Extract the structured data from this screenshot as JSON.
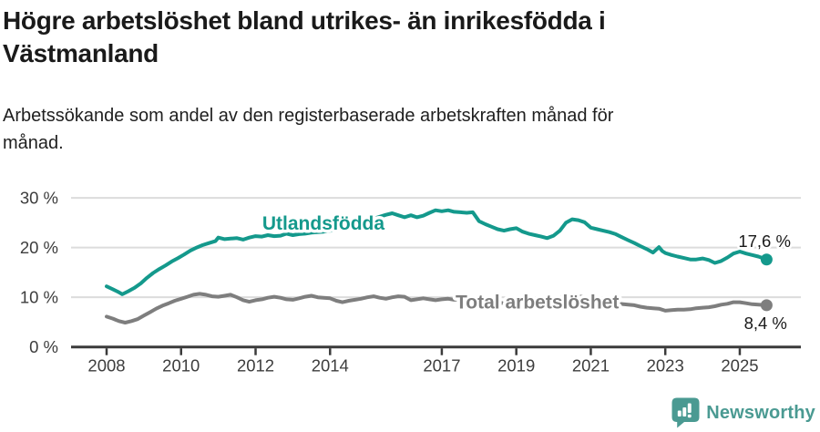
{
  "title": "Högre arbetslöshet bland utrikes- än inrikesfödda i\nVästmanland",
  "subtitle": "Arbetssökande som andel av den registerbaserade arbetskraften månad för\nmånad.",
  "branding": {
    "logo_text": "Newsworthy",
    "logo_icon": "bar-chart-speech-bubble-icon",
    "logo_color": "#4a9a92"
  },
  "colors": {
    "foreign_born": "#14998c",
    "total": "#7e7e7e",
    "gridline": "#dcdcdc",
    "axis": "#3b3b3b",
    "tick_text": "#3d3d3d",
    "annotation_text": "#1a1a1a",
    "background": "#ffffff"
  },
  "chart_data": {
    "type": "line",
    "title": "Högre arbetslöshet bland utrikes- än inrikesfödda i Västmanland",
    "subtitle": "Arbetssökande som andel av den registerbaserade arbetskraften månad för månad.",
    "xlabel": "",
    "ylabel": "",
    "xlim": [
      2008,
      2026.6
    ],
    "ylim": [
      0,
      32
    ],
    "grid": "horizontal",
    "legend_position": "inline-labels",
    "x_ticks": [
      {
        "v": 2008,
        "label": "2008"
      },
      {
        "v": 2010,
        "label": "2010"
      },
      {
        "v": 2012,
        "label": "2012"
      },
      {
        "v": 2014,
        "label": "2014"
      },
      {
        "v": 2017,
        "label": "2017"
      },
      {
        "v": 2019,
        "label": "2019"
      },
      {
        "v": 2021,
        "label": "2021"
      },
      {
        "v": 2023,
        "label": "2023"
      },
      {
        "v": 2025,
        "label": "2025"
      }
    ],
    "y_ticks": [
      {
        "v": 0,
        "label": "0 %"
      },
      {
        "v": 10,
        "label": "10 %"
      },
      {
        "v": 20,
        "label": "20 %"
      },
      {
        "v": 30,
        "label": "30 %"
      }
    ],
    "series": [
      {
        "name": "Utlandsfödda",
        "color": "#14998c",
        "end_value": 17.6,
        "end_dot": true,
        "label": {
          "text": "Utlandsfödda",
          "x": 2012.18,
          "y": 23.6,
          "anchor": "start"
        },
        "end_annotation": {
          "text": "17,6 %",
          "x": 2026.37,
          "y": 20.1,
          "anchor": "end"
        },
        "points": [
          [
            2008,
            12.2
          ],
          [
            2008.17,
            11.6
          ],
          [
            2008.33,
            11
          ],
          [
            2008.42,
            10.6
          ],
          [
            2008.58,
            11.2
          ],
          [
            2008.75,
            11.9
          ],
          [
            2008.92,
            12.8
          ],
          [
            2009.08,
            13.9
          ],
          [
            2009.25,
            14.9
          ],
          [
            2009.42,
            15.7
          ],
          [
            2009.58,
            16.4
          ],
          [
            2009.75,
            17.2
          ],
          [
            2009.92,
            17.9
          ],
          [
            2010.08,
            18.6
          ],
          [
            2010.25,
            19.4
          ],
          [
            2010.42,
            20
          ],
          [
            2010.58,
            20.5
          ],
          [
            2010.75,
            20.9
          ],
          [
            2010.92,
            21.3
          ],
          [
            2011,
            22
          ],
          [
            2011.17,
            21.7
          ],
          [
            2011.33,
            21.8
          ],
          [
            2011.5,
            21.9
          ],
          [
            2011.67,
            21.6
          ],
          [
            2011.83,
            22
          ],
          [
            2012,
            22.3
          ],
          [
            2012.17,
            22.2
          ],
          [
            2012.33,
            22.5
          ],
          [
            2012.5,
            22.3
          ],
          [
            2012.67,
            22.4
          ],
          [
            2012.83,
            22.8
          ],
          [
            2013,
            22.5
          ],
          [
            2013.17,
            22.7
          ],
          [
            2013.33,
            22.8
          ],
          [
            2013.5,
            23
          ],
          [
            2013.67,
            23.1
          ],
          [
            2013.83,
            23.2
          ],
          [
            2014,
            23.4
          ],
          [
            2014.25,
            23.7
          ],
          [
            2014.5,
            24.2
          ],
          [
            2014.75,
            24.8
          ],
          [
            2015,
            25.4
          ],
          [
            2015.25,
            26
          ],
          [
            2015.5,
            26.6
          ],
          [
            2015.67,
            26.9
          ],
          [
            2015.83,
            26.5
          ],
          [
            2016,
            26.1
          ],
          [
            2016.17,
            26.5
          ],
          [
            2016.33,
            26.1
          ],
          [
            2016.5,
            26.4
          ],
          [
            2016.67,
            27
          ],
          [
            2016.83,
            27.5
          ],
          [
            2017,
            27.3
          ],
          [
            2017.17,
            27.5
          ],
          [
            2017.33,
            27.2
          ],
          [
            2017.5,
            27.1
          ],
          [
            2017.67,
            27
          ],
          [
            2017.83,
            27.1
          ],
          [
            2018,
            25.3
          ],
          [
            2018.17,
            24.7
          ],
          [
            2018.33,
            24.2
          ],
          [
            2018.5,
            23.7
          ],
          [
            2018.67,
            23.4
          ],
          [
            2018.83,
            23.7
          ],
          [
            2019,
            23.9
          ],
          [
            2019.17,
            23.2
          ],
          [
            2019.33,
            22.8
          ],
          [
            2019.5,
            22.5
          ],
          [
            2019.67,
            22.2
          ],
          [
            2019.83,
            21.9
          ],
          [
            2020,
            22.4
          ],
          [
            2020.17,
            23.4
          ],
          [
            2020.33,
            25
          ],
          [
            2020.5,
            25.7
          ],
          [
            2020.67,
            25.5
          ],
          [
            2020.83,
            25.1
          ],
          [
            2021,
            24
          ],
          [
            2021.17,
            23.7
          ],
          [
            2021.33,
            23.4
          ],
          [
            2021.5,
            23.1
          ],
          [
            2021.67,
            22.7
          ],
          [
            2021.83,
            22.1
          ],
          [
            2022,
            21.5
          ],
          [
            2022.17,
            20.9
          ],
          [
            2022.33,
            20.3
          ],
          [
            2022.5,
            19.7
          ],
          [
            2022.67,
            19
          ],
          [
            2022.83,
            20.1
          ],
          [
            2022.92,
            19.3
          ],
          [
            2023,
            18.9
          ],
          [
            2023.17,
            18.5
          ],
          [
            2023.33,
            18.2
          ],
          [
            2023.5,
            17.9
          ],
          [
            2023.67,
            17.6
          ],
          [
            2023.83,
            17.6
          ],
          [
            2024,
            17.8
          ],
          [
            2024.17,
            17.5
          ],
          [
            2024.33,
            16.9
          ],
          [
            2024.5,
            17.3
          ],
          [
            2024.67,
            18
          ],
          [
            2024.83,
            18.8
          ],
          [
            2025,
            19.2
          ],
          [
            2025.17,
            18.8
          ],
          [
            2025.33,
            18.5
          ],
          [
            2025.5,
            18.2
          ],
          [
            2025.72,
            17.6
          ]
        ]
      },
      {
        "name": "Total arbetslöshet",
        "color": "#7e7e7e",
        "end_value": 8.4,
        "end_dot": true,
        "label": {
          "text": "Total arbetslöshet",
          "x": 2017.37,
          "y": 7.7,
          "anchor": "start"
        },
        "end_annotation": {
          "text": "8,4 %",
          "x": 2026.27,
          "y": 3.6,
          "anchor": "end"
        },
        "points": [
          [
            2008,
            6.1
          ],
          [
            2008.17,
            5.7
          ],
          [
            2008.33,
            5.2
          ],
          [
            2008.5,
            4.9
          ],
          [
            2008.67,
            5.2
          ],
          [
            2008.83,
            5.6
          ],
          [
            2009,
            6.3
          ],
          [
            2009.17,
            7
          ],
          [
            2009.33,
            7.7
          ],
          [
            2009.5,
            8.3
          ],
          [
            2009.67,
            8.8
          ],
          [
            2009.83,
            9.3
          ],
          [
            2010,
            9.7
          ],
          [
            2010.17,
            10.1
          ],
          [
            2010.33,
            10.5
          ],
          [
            2010.5,
            10.7
          ],
          [
            2010.67,
            10.5
          ],
          [
            2010.83,
            10.2
          ],
          [
            2011,
            10.1
          ],
          [
            2011.17,
            10.3
          ],
          [
            2011.33,
            10.5
          ],
          [
            2011.5,
            10
          ],
          [
            2011.67,
            9.4
          ],
          [
            2011.83,
            9.1
          ],
          [
            2012,
            9.4
          ],
          [
            2012.17,
            9.6
          ],
          [
            2012.33,
            9.9
          ],
          [
            2012.5,
            10.1
          ],
          [
            2012.67,
            9.9
          ],
          [
            2012.83,
            9.6
          ],
          [
            2013,
            9.5
          ],
          [
            2013.17,
            9.8
          ],
          [
            2013.33,
            10.1
          ],
          [
            2013.5,
            10.3
          ],
          [
            2013.67,
            10
          ],
          [
            2013.83,
            9.9
          ],
          [
            2014,
            9.8
          ],
          [
            2014.17,
            9.3
          ],
          [
            2014.33,
            9
          ],
          [
            2014.5,
            9.3
          ],
          [
            2014.67,
            9.5
          ],
          [
            2014.83,
            9.7
          ],
          [
            2015,
            10
          ],
          [
            2015.17,
            10.2
          ],
          [
            2015.33,
            9.9
          ],
          [
            2015.5,
            9.7
          ],
          [
            2015.67,
            10
          ],
          [
            2015.83,
            10.2
          ],
          [
            2016,
            10.1
          ],
          [
            2016.17,
            9.4
          ],
          [
            2016.33,
            9.6
          ],
          [
            2016.5,
            9.8
          ],
          [
            2016.67,
            9.6
          ],
          [
            2016.83,
            9.4
          ],
          [
            2017,
            9.6
          ],
          [
            2017.17,
            9.7
          ],
          [
            2017.33,
            9.5
          ],
          [
            2017.5,
            9.6
          ],
          [
            2017.67,
            9.4
          ],
          [
            2017.83,
            9.2
          ],
          [
            2018,
            9.1
          ],
          [
            2018.25,
            9
          ],
          [
            2018.5,
            8.9
          ],
          [
            2018.75,
            8.8
          ],
          [
            2019,
            8.7
          ],
          [
            2019.25,
            8.7
          ],
          [
            2019.5,
            8.8
          ],
          [
            2019.75,
            9
          ],
          [
            2020,
            9.4
          ],
          [
            2020.25,
            10.2
          ],
          [
            2020.5,
            10.4
          ],
          [
            2020.75,
            10.1
          ],
          [
            2021,
            9.8
          ],
          [
            2021.25,
            9.4
          ],
          [
            2021.5,
            9
          ],
          [
            2021.75,
            8.7
          ],
          [
            2022,
            8.5
          ],
          [
            2022.17,
            8.4
          ],
          [
            2022.33,
            8.1
          ],
          [
            2022.5,
            7.9
          ],
          [
            2022.67,
            7.8
          ],
          [
            2022.83,
            7.7
          ],
          [
            2023,
            7.3
          ],
          [
            2023.17,
            7.4
          ],
          [
            2023.33,
            7.5
          ],
          [
            2023.5,
            7.5
          ],
          [
            2023.67,
            7.6
          ],
          [
            2023.83,
            7.8
          ],
          [
            2024,
            7.9
          ],
          [
            2024.17,
            8
          ],
          [
            2024.33,
            8.2
          ],
          [
            2024.5,
            8.5
          ],
          [
            2024.67,
            8.7
          ],
          [
            2024.83,
            9
          ],
          [
            2025,
            9
          ],
          [
            2025.17,
            8.8
          ],
          [
            2025.33,
            8.6
          ],
          [
            2025.5,
            8.5
          ],
          [
            2025.72,
            8.4
          ]
        ]
      }
    ]
  }
}
